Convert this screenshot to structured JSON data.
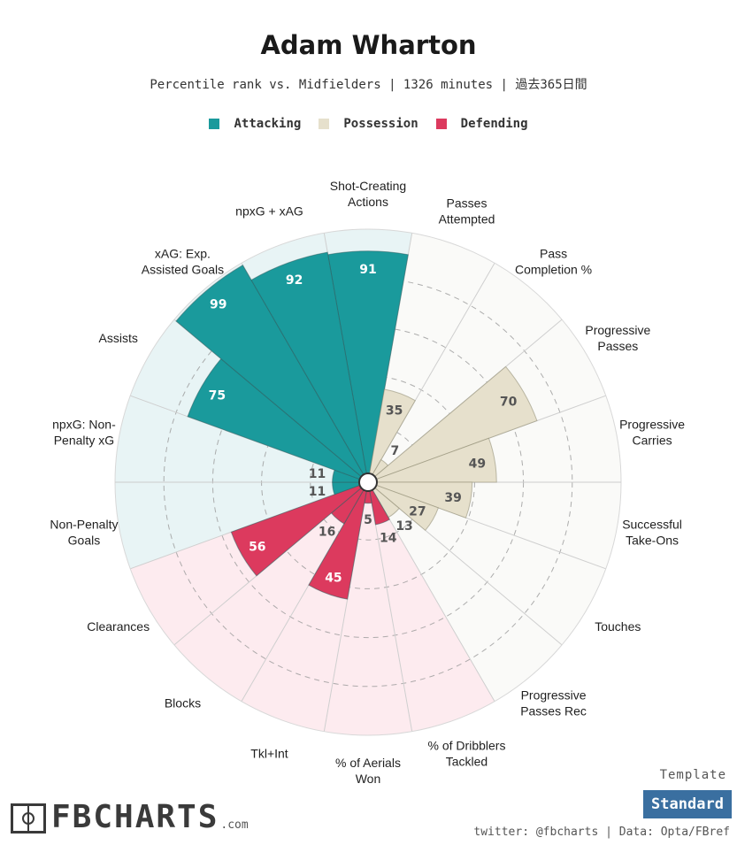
{
  "header": {
    "title": "Adam Wharton",
    "subtitle": "Percentile rank vs. Midfielders | 1326 minutes | 過去365日間"
  },
  "legend": [
    {
      "label": "Attacking",
      "color": "#1a9a9c"
    },
    {
      "label": "Possession",
      "color": "#e6e0cc"
    },
    {
      "label": "Defending",
      "color": "#dc3a5e"
    }
  ],
  "chart_data": {
    "type": "polar-bar",
    "range": [
      0,
      100
    ],
    "gridlines": [
      20,
      40,
      60,
      80
    ],
    "categories": [
      {
        "label": [
          "Shot-Creating",
          "Actions"
        ],
        "value": 91,
        "group": "Attacking"
      },
      {
        "label": [
          "Passes",
          "Attempted"
        ],
        "value": 35,
        "group": "Possession"
      },
      {
        "label": [
          "Pass",
          "Completion %"
        ],
        "value": 7,
        "group": "Possession"
      },
      {
        "label": [
          "Progressive",
          "Passes"
        ],
        "value": 70,
        "group": "Possession"
      },
      {
        "label": [
          "Progressive",
          "Carries"
        ],
        "value": 49,
        "group": "Possession"
      },
      {
        "label": [
          "Successful",
          "Take-Ons"
        ],
        "value": 39,
        "group": "Possession"
      },
      {
        "label": [
          "Touches"
        ],
        "value": 27,
        "group": "Possession"
      },
      {
        "label": [
          "Progressive",
          "Passes Rec"
        ],
        "value": 13,
        "group": "Possession"
      },
      {
        "label": [
          "% of Dribblers",
          "Tackled"
        ],
        "value": 14,
        "group": "Defending"
      },
      {
        "label": [
          "% of Aerials",
          "Won"
        ],
        "value": 5,
        "group": "Defending"
      },
      {
        "label": [
          "Tkl+Int"
        ],
        "value": 45,
        "group": "Defending"
      },
      {
        "label": [
          "Blocks"
        ],
        "value": 16,
        "group": "Defending"
      },
      {
        "label": [
          "Clearances"
        ],
        "value": 56,
        "group": "Defending"
      },
      {
        "label": [
          "Non-Penalty",
          "Goals"
        ],
        "value": 11,
        "group": "Attacking"
      },
      {
        "label": [
          "npxG: Non-",
          "Penalty xG"
        ],
        "value": 11,
        "group": "Attacking"
      },
      {
        "label": [
          "Assists"
        ],
        "value": 75,
        "group": "Attacking"
      },
      {
        "label": [
          "xAG: Exp.",
          "Assisted Goals"
        ],
        "value": 99,
        "group": "Attacking"
      },
      {
        "label": [
          "npxG + xAG"
        ],
        "value": 92,
        "group": "Attacking"
      }
    ]
  },
  "footer": {
    "brand": "FBCHARTS",
    "brand_suffix": ".com",
    "template_label": "Template",
    "template_value": "Standard",
    "credits": "twitter: @fbcharts | Data: Opta/FBref"
  }
}
